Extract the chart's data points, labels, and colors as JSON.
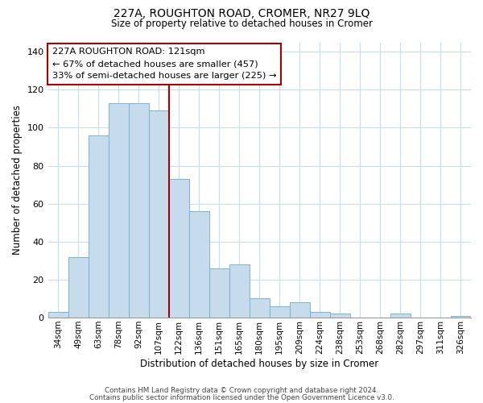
{
  "title_line1": "227A, ROUGHTON ROAD, CROMER, NR27 9LQ",
  "title_line2": "Size of property relative to detached houses in Cromer",
  "xlabel": "Distribution of detached houses by size in Cromer",
  "ylabel": "Number of detached properties",
  "footer_line1": "Contains HM Land Registry data © Crown copyright and database right 2024.",
  "footer_line2": "Contains public sector information licensed under the Open Government Licence v3.0.",
  "categories": [
    "34sqm",
    "49sqm",
    "63sqm",
    "78sqm",
    "92sqm",
    "107sqm",
    "122sqm",
    "136sqm",
    "151sqm",
    "165sqm",
    "180sqm",
    "195sqm",
    "209sqm",
    "224sqm",
    "238sqm",
    "253sqm",
    "268sqm",
    "282sqm",
    "297sqm",
    "311sqm",
    "326sqm"
  ],
  "values": [
    3,
    32,
    96,
    113,
    113,
    109,
    73,
    56,
    26,
    28,
    10,
    6,
    8,
    3,
    2,
    0,
    0,
    2,
    0,
    0,
    1
  ],
  "bar_color": "#c6dcec",
  "bar_edge_color": "#7ab3d0",
  "highlight_bar_index": 5,
  "highlight_line_color": "#aa0000",
  "annotation_box_color": "#ffffff",
  "annotation_box_edge_color": "#aa0000",
  "annotation_title": "227A ROUGHTON ROAD: 121sqm",
  "annotation_line1": "← 67% of detached houses are smaller (457)",
  "annotation_line2": "33% of semi-detached houses are larger (225) →",
  "ylim": [
    0,
    145
  ],
  "yticks": [
    0,
    20,
    40,
    60,
    80,
    100,
    120,
    140
  ],
  "background_color": "#ffffff",
  "grid_color": "#c8dcea"
}
